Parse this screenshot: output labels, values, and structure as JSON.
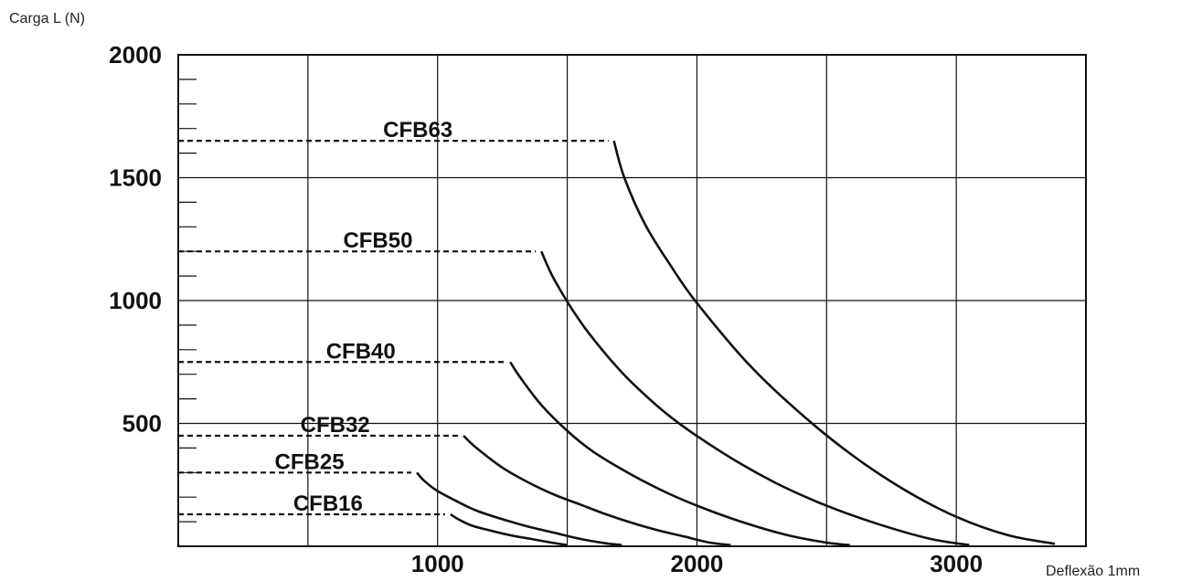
{
  "chart_data": {
    "type": "line",
    "title": "",
    "ylabel": "Carga L (N)",
    "xlabel": "Deflexão 1mm",
    "xlim": [
      0,
      3500
    ],
    "ylim": [
      0,
      2000
    ],
    "x_ticks": [
      1000,
      2000,
      3000
    ],
    "y_ticks": [
      500,
      1000,
      1500,
      2000
    ],
    "x_grid": [
      500,
      1000,
      1500,
      2000,
      2500,
      3000,
      3500
    ],
    "y_grid": [
      500,
      1000,
      1500,
      2000
    ],
    "y_minor_step": 100,
    "grid": true,
    "series": [
      {
        "name": "CFB63",
        "max_load": 1650,
        "x": [
          1680,
          1720,
          1800,
          1900,
          2000,
          2200,
          2400,
          2600,
          2800,
          3000,
          3200,
          3380
        ],
        "y": [
          1650,
          1500,
          1310,
          1140,
          990,
          740,
          540,
          370,
          230,
          120,
          45,
          10
        ]
      },
      {
        "name": "CFB50",
        "max_load": 1200,
        "x": [
          1400,
          1450,
          1550,
          1650,
          1750,
          1900,
          2100,
          2300,
          2500,
          2700,
          2900,
          3050
        ],
        "y": [
          1200,
          1085,
          915,
          780,
          665,
          525,
          380,
          260,
          165,
          90,
          30,
          5
        ]
      },
      {
        "name": "CFB40",
        "max_load": 750,
        "x": [
          1280,
          1320,
          1400,
          1500,
          1600,
          1750,
          1900,
          2050,
          2200,
          2350,
          2500,
          2590
        ],
        "y": [
          750,
          685,
          575,
          470,
          385,
          290,
          210,
          145,
          90,
          45,
          15,
          5
        ]
      },
      {
        "name": "CFB32",
        "max_load": 450,
        "x": [
          1100,
          1150,
          1250,
          1350,
          1450,
          1550,
          1650,
          1750,
          1850,
          1950,
          2050,
          2130
        ],
        "y": [
          450,
          400,
          320,
          260,
          210,
          170,
          130,
          95,
          65,
          40,
          15,
          5
        ]
      },
      {
        "name": "CFB25",
        "max_load": 300,
        "x": [
          920,
          950,
          1000,
          1080,
          1150,
          1250,
          1350,
          1450,
          1550,
          1650,
          1710
        ],
        "y": [
          300,
          265,
          225,
          180,
          145,
          110,
          80,
          55,
          30,
          12,
          5
        ]
      },
      {
        "name": "CFB16",
        "max_load": 130,
        "x": [
          1050,
          1080,
          1130,
          1200,
          1280,
          1360,
          1440,
          1500
        ],
        "y": [
          130,
          110,
          85,
          65,
          45,
          30,
          15,
          5
        ]
      }
    ]
  }
}
